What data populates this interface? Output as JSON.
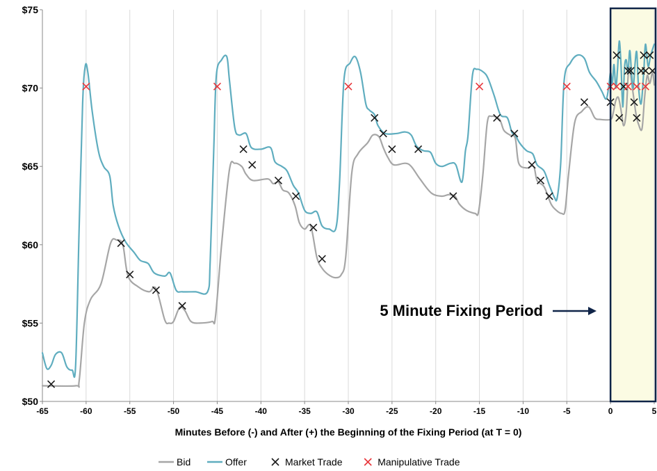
{
  "chart_data": {
    "type": "line",
    "title": "",
    "xlabel": "Minutes Before  (-) and After (+) the Beginning of the Fixing Period (at T = 0)",
    "ylabel": "",
    "xlim": [
      -65,
      5
    ],
    "ylim": [
      50,
      75
    ],
    "x_ticks": [
      -65,
      -60,
      -55,
      -50,
      -45,
      -40,
      -35,
      -30,
      -25,
      -20,
      -15,
      -10,
      -5,
      0,
      5
    ],
    "y_ticks": [
      50,
      55,
      60,
      65,
      70,
      75
    ],
    "y_tick_labels": [
      "$50",
      "$55",
      "$60",
      "$65",
      "$70",
      "$75"
    ],
    "grid": "vertical",
    "legend": "bottom",
    "annotation": {
      "text": "5 Minute Fixing Period",
      "arrow": "right"
    },
    "highlight_region": {
      "x_from": 0,
      "x_to": 5,
      "fill": "#fbfbe3",
      "border": "#0f2448"
    },
    "colors": {
      "bid": "#a6a6a6",
      "offer": "#5fadbf",
      "market": "#1a1a1a",
      "manipulative": "#e8353a",
      "grid": "#d9d9d9"
    },
    "series": [
      {
        "name": "Bid",
        "key": "bid",
        "points": [
          [
            -65,
            51
          ],
          [
            -61.2,
            51
          ],
          [
            -60.8,
            51.3
          ],
          [
            -60.2,
            55
          ],
          [
            -59.5,
            56.5
          ],
          [
            -58.3,
            57.5
          ],
          [
            -57.2,
            60.1
          ],
          [
            -56.5,
            60.3
          ],
          [
            -55.8,
            60
          ],
          [
            -55.2,
            58
          ],
          [
            -54,
            57.3
          ],
          [
            -52.8,
            57
          ],
          [
            -52,
            57.2
          ],
          [
            -51,
            55.2
          ],
          [
            -50.5,
            55
          ],
          [
            -50,
            55.1
          ],
          [
            -49.3,
            56
          ],
          [
            -48.7,
            55.8
          ],
          [
            -48,
            55.1
          ],
          [
            -47,
            55
          ],
          [
            -45.6,
            55.1
          ],
          [
            -45.2,
            55.4
          ],
          [
            -44.5,
            60
          ],
          [
            -43.6,
            64.8
          ],
          [
            -43,
            65.2
          ],
          [
            -42.2,
            65
          ],
          [
            -41.7,
            64.5
          ],
          [
            -40.9,
            64.1
          ],
          [
            -39.2,
            64.2
          ],
          [
            -38.6,
            63.9
          ],
          [
            -38,
            64
          ],
          [
            -37.5,
            63.5
          ],
          [
            -36.8,
            63.3
          ],
          [
            -36.1,
            62.5
          ],
          [
            -35.6,
            61.4
          ],
          [
            -35,
            61
          ],
          [
            -34.3,
            61.2
          ],
          [
            -33.6,
            59.2
          ],
          [
            -33,
            58.5
          ],
          [
            -32.3,
            58.1
          ],
          [
            -31.5,
            57.9
          ],
          [
            -30.8,
            58.1
          ],
          [
            -30.3,
            59.2
          ],
          [
            -29.6,
            64.6
          ],
          [
            -28.9,
            65.8
          ],
          [
            -27.8,
            66.5
          ],
          [
            -27.2,
            67
          ],
          [
            -26.5,
            66.9
          ],
          [
            -26,
            66.2
          ],
          [
            -25.5,
            65.6
          ],
          [
            -24.8,
            65.1
          ],
          [
            -23.5,
            65.2
          ],
          [
            -22.8,
            65
          ],
          [
            -21.8,
            64.2
          ],
          [
            -20.5,
            63.3
          ],
          [
            -19.3,
            63.1
          ],
          [
            -18.5,
            63.2
          ],
          [
            -17.8,
            63.1
          ],
          [
            -17.3,
            62.6
          ],
          [
            -16.5,
            62.2
          ],
          [
            -15.5,
            62
          ],
          [
            -15.1,
            62.1
          ],
          [
            -14.6,
            64.5
          ],
          [
            -14.1,
            67.8
          ],
          [
            -13.6,
            68.2
          ],
          [
            -12.7,
            68
          ],
          [
            -12.2,
            67.3
          ],
          [
            -11.5,
            67
          ],
          [
            -10.9,
            66.8
          ],
          [
            -10.5,
            65.2
          ],
          [
            -9.6,
            64.9
          ],
          [
            -8.8,
            65
          ],
          [
            -8.4,
            64.1
          ],
          [
            -7.6,
            63.7
          ],
          [
            -6.8,
            62.6
          ],
          [
            -6.2,
            62.2
          ],
          [
            -5.6,
            62
          ],
          [
            -5.2,
            62.2
          ],
          [
            -4.8,
            64.5
          ],
          [
            -4.1,
            67.8
          ],
          [
            -3.3,
            68.5
          ],
          [
            -2.5,
            68.8
          ],
          [
            -1.8,
            68.1
          ],
          [
            -1.2,
            68
          ],
          [
            0,
            68
          ],
          [
            0.3,
            68.4
          ],
          [
            0.6,
            69.2
          ],
          [
            0.9,
            69.4
          ],
          [
            1.2,
            68.6
          ],
          [
            1.5,
            67.6
          ],
          [
            1.8,
            68.5
          ],
          [
            2.1,
            71.3
          ],
          [
            2.5,
            70
          ],
          [
            2.9,
            68.4
          ],
          [
            3.2,
            67.7
          ],
          [
            3.6,
            67.4
          ],
          [
            3.9,
            69.4
          ],
          [
            4.2,
            70.8
          ],
          [
            4.5,
            70.3
          ],
          [
            4.8,
            71
          ],
          [
            5,
            70.2
          ]
        ]
      },
      {
        "name": "Offer",
        "key": "offer",
        "points": [
          [
            -65,
            53.1
          ],
          [
            -64.5,
            52.1
          ],
          [
            -64,
            52.3
          ],
          [
            -63.5,
            53
          ],
          [
            -62.8,
            53.1
          ],
          [
            -62.2,
            52.2
          ],
          [
            -61.6,
            52
          ],
          [
            -61.2,
            52.3
          ],
          [
            -60.8,
            61
          ],
          [
            -60.4,
            69
          ],
          [
            -60.1,
            71.4
          ],
          [
            -59.8,
            71
          ],
          [
            -59.3,
            68.5
          ],
          [
            -58.6,
            66
          ],
          [
            -58,
            65
          ],
          [
            -57.3,
            64.4
          ],
          [
            -56.9,
            62.5
          ],
          [
            -56.3,
            61.2
          ],
          [
            -55.5,
            60.2
          ],
          [
            -54.5,
            59.5
          ],
          [
            -53.8,
            59
          ],
          [
            -52.9,
            58.8
          ],
          [
            -52.2,
            58.2
          ],
          [
            -51,
            58
          ],
          [
            -50.4,
            58.2
          ],
          [
            -49.7,
            57.1
          ],
          [
            -49,
            57
          ],
          [
            -47.5,
            57
          ],
          [
            -46.1,
            57
          ],
          [
            -45.8,
            59
          ],
          [
            -45.4,
            66
          ],
          [
            -45.1,
            70.8
          ],
          [
            -44.5,
            71.8
          ],
          [
            -43.9,
            72
          ],
          [
            -43.6,
            70.5
          ],
          [
            -43,
            67.5
          ],
          [
            -42.5,
            67
          ],
          [
            -41.7,
            67.1
          ],
          [
            -41.1,
            66.2
          ],
          [
            -40,
            66.1
          ],
          [
            -38.9,
            66.2
          ],
          [
            -38.4,
            65.3
          ],
          [
            -37.6,
            65
          ],
          [
            -37,
            64.7
          ],
          [
            -36.3,
            63.8
          ],
          [
            -35.7,
            63.3
          ],
          [
            -35,
            62.2
          ],
          [
            -34.3,
            62
          ],
          [
            -33.6,
            62.1
          ],
          [
            -33,
            61.2
          ],
          [
            -32.2,
            61
          ],
          [
            -31.4,
            61.1
          ],
          [
            -31,
            64
          ],
          [
            -30.5,
            70.5
          ],
          [
            -29.8,
            71.6
          ],
          [
            -29.2,
            72
          ],
          [
            -28.6,
            71
          ],
          [
            -28,
            69
          ],
          [
            -27.6,
            68.6
          ],
          [
            -27,
            68.3
          ],
          [
            -26.6,
            67.6
          ],
          [
            -25.8,
            67.1
          ],
          [
            -24.5,
            67.1
          ],
          [
            -23.5,
            67.2
          ],
          [
            -22.8,
            67
          ],
          [
            -22.2,
            66.3
          ],
          [
            -21.4,
            66
          ],
          [
            -20.6,
            65.9
          ],
          [
            -20,
            65.2
          ],
          [
            -19.3,
            65
          ],
          [
            -18.3,
            65.2
          ],
          [
            -17.7,
            65.1
          ],
          [
            -17,
            64
          ],
          [
            -16.6,
            66
          ],
          [
            -16.3,
            67
          ],
          [
            -15.8,
            70.8
          ],
          [
            -15.3,
            71.2
          ],
          [
            -14.5,
            71
          ],
          [
            -14,
            70.6
          ],
          [
            -13.3,
            69.5
          ],
          [
            -12.6,
            68.3
          ],
          [
            -11.8,
            68.1
          ],
          [
            -11.3,
            67.2
          ],
          [
            -10.9,
            67
          ],
          [
            -10.4,
            66.5
          ],
          [
            -9.6,
            66
          ],
          [
            -8.9,
            65.8
          ],
          [
            -8.4,
            65.1
          ],
          [
            -7.6,
            64.7
          ],
          [
            -7,
            63.8
          ],
          [
            -6.4,
            63
          ],
          [
            -6.1,
            63
          ],
          [
            -5.7,
            65.2
          ],
          [
            -5.3,
            70.5
          ],
          [
            -4.6,
            71.6
          ],
          [
            -3.8,
            72.1
          ],
          [
            -3,
            71.9
          ],
          [
            -2.4,
            71
          ],
          [
            -1.6,
            70.4
          ],
          [
            -1,
            69.8
          ],
          [
            -0.5,
            69.3
          ],
          [
            -0.2,
            70.1
          ],
          [
            0,
            71
          ],
          [
            0.2,
            70.3
          ],
          [
            0.4,
            71.5
          ],
          [
            0.6,
            70
          ],
          [
            0.8,
            71.2
          ],
          [
            1,
            73
          ],
          [
            1.2,
            71.5
          ],
          [
            1.4,
            68.8
          ],
          [
            1.6,
            71.3
          ],
          [
            1.8,
            71.8
          ],
          [
            2,
            71
          ],
          [
            2.2,
            72.4
          ],
          [
            2.4,
            71
          ],
          [
            2.6,
            70
          ],
          [
            2.8,
            71.5
          ],
          [
            3,
            72.3
          ],
          [
            3.2,
            70.1
          ],
          [
            3.5,
            69
          ],
          [
            3.8,
            71
          ],
          [
            4,
            72.8
          ],
          [
            4.3,
            71.4
          ],
          [
            4.6,
            72.1
          ],
          [
            5,
            72.8
          ]
        ]
      }
    ],
    "markers": [
      {
        "name": "Market Trade",
        "key": "market",
        "points": [
          [
            -64,
            51.1
          ],
          [
            -56,
            60.1
          ],
          [
            -55,
            58.1
          ],
          [
            -52,
            57.1
          ],
          [
            -49,
            56.1
          ],
          [
            -42,
            66.1
          ],
          [
            -41,
            65.1
          ],
          [
            -38,
            64.1
          ],
          [
            -36,
            63.1
          ],
          [
            -34,
            61.1
          ],
          [
            -33,
            59.1
          ],
          [
            -27,
            68.1
          ],
          [
            -26,
            67.1
          ],
          [
            -25,
            66.1
          ],
          [
            -22,
            66.1
          ],
          [
            -18,
            63.1
          ],
          [
            -13,
            68.1
          ],
          [
            -11,
            67.1
          ],
          [
            -9,
            65.1
          ],
          [
            -8,
            64.1
          ],
          [
            -7,
            63.1
          ],
          [
            -3,
            69.1
          ],
          [
            0,
            69.1
          ],
          [
            0.7,
            72.1
          ],
          [
            1,
            68.1
          ],
          [
            1.5,
            70.1
          ],
          [
            2,
            71.1
          ],
          [
            2.3,
            71.1
          ],
          [
            2.7,
            69.1
          ],
          [
            3,
            68.1
          ],
          [
            3.5,
            71.1
          ],
          [
            3.8,
            72.1
          ],
          [
            4,
            71.1
          ],
          [
            4.5,
            72.1
          ],
          [
            4.8,
            71.1
          ]
        ]
      },
      {
        "name": "Manipulative Trade",
        "key": "manipulative",
        "points": [
          [
            -60,
            70.1
          ],
          [
            -45,
            70.1
          ],
          [
            -30,
            70.1
          ],
          [
            -15,
            70.1
          ],
          [
            -5,
            70.1
          ],
          [
            0,
            70.1
          ],
          [
            0.7,
            70.1
          ],
          [
            2,
            70.1
          ],
          [
            3,
            70.1
          ],
          [
            4,
            70.1
          ]
        ]
      }
    ]
  }
}
